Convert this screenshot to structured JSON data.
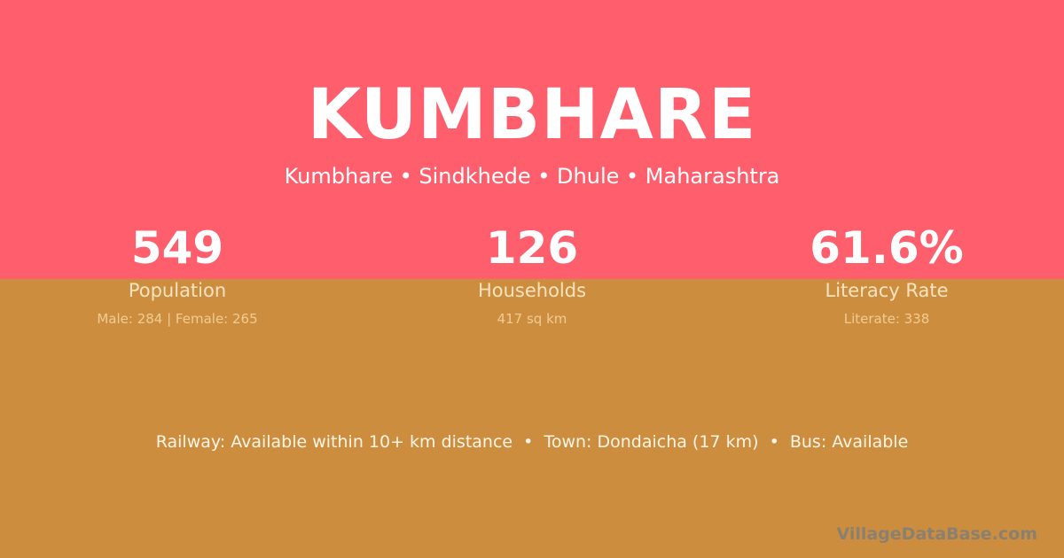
{
  "header": {
    "title": "KUMBHARE",
    "subtitle": "Kumbhare • Sindkhede • Dhule • Maharashtra"
  },
  "stats": [
    {
      "value": "549",
      "label": "Population",
      "sub": "Male: 284 | Female: 265"
    },
    {
      "value": "126",
      "label": "Households",
      "sub": "417 sq km"
    },
    {
      "value": "61.6%",
      "label": "Literacy Rate",
      "sub": "Literate: 338"
    }
  ],
  "footer": {
    "text": "Railway: Available within 10+ km distance  •  Town: Dondaicha (17 km)  •  Bus: Available"
  },
  "watermark": "VillageDataBase.com",
  "colors": {
    "top_band": "#ff5f6d",
    "bottom_band": "#cc8e3e"
  }
}
